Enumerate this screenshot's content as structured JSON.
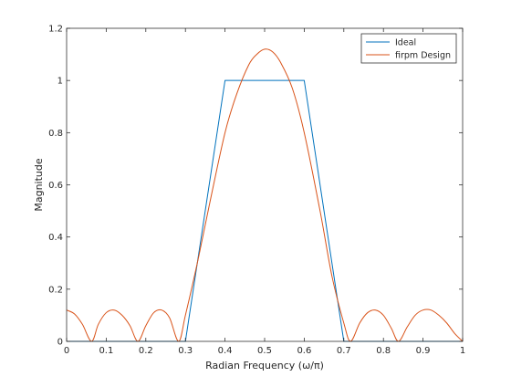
{
  "chart_data": {
    "type": "line",
    "title": "",
    "xlabel": "Radian Frequency (ω/π)",
    "ylabel": "Magnitude",
    "xlim": [
      0,
      1
    ],
    "ylim": [
      0,
      1.2
    ],
    "xticks": [
      0,
      0.1,
      0.2,
      0.3,
      0.4,
      0.5,
      0.6,
      0.7,
      0.8,
      0.9,
      1
    ],
    "xtick_labels": [
      "0",
      "0.1",
      "0.2",
      "0.3",
      "0.4",
      "0.5",
      "0.6",
      "0.7",
      "0.8",
      "0.9",
      "1"
    ],
    "yticks": [
      0,
      0.2,
      0.4,
      0.6,
      0.8,
      1,
      1.2
    ],
    "ytick_labels": [
      "0",
      "0.2",
      "0.4",
      "0.6",
      "0.8",
      "1",
      "1.2"
    ],
    "grid": false,
    "legend_position": "top-right",
    "series": [
      {
        "name": "Ideal",
        "color": "#0072BD",
        "x": [
          0,
          0.3,
          0.4,
          0.6,
          0.7,
          1
        ],
        "y": [
          0,
          0,
          1,
          1,
          0,
          0
        ]
      },
      {
        "name": "firpm Design",
        "color": "#D95319",
        "x": [
          0,
          0.02,
          0.04,
          0.063,
          0.08,
          0.1,
          0.12,
          0.14,
          0.16,
          0.18,
          0.2,
          0.22,
          0.24,
          0.26,
          0.283,
          0.3,
          0.33,
          0.36,
          0.4,
          0.43,
          0.46,
          0.48,
          0.5,
          0.52,
          0.54,
          0.57,
          0.6,
          0.64,
          0.67,
          0.7,
          0.717,
          0.74,
          0.76,
          0.78,
          0.8,
          0.82,
          0.838,
          0.86,
          0.88,
          0.9,
          0.92,
          0.94,
          0.96,
          0.98,
          1
        ],
        "y": [
          0.12,
          0.105,
          0.065,
          0,
          0.065,
          0.11,
          0.12,
          0.1,
          0.06,
          0,
          0.06,
          0.11,
          0.12,
          0.09,
          0,
          0.1,
          0.3,
          0.52,
          0.8,
          0.95,
          1.06,
          1.1,
          1.12,
          1.11,
          1.07,
          0.97,
          0.8,
          0.5,
          0.25,
          0.07,
          0,
          0.07,
          0.11,
          0.12,
          0.1,
          0.05,
          0,
          0.055,
          0.1,
          0.12,
          0.12,
          0.1,
          0.07,
          0.03,
          0
        ]
      }
    ]
  }
}
